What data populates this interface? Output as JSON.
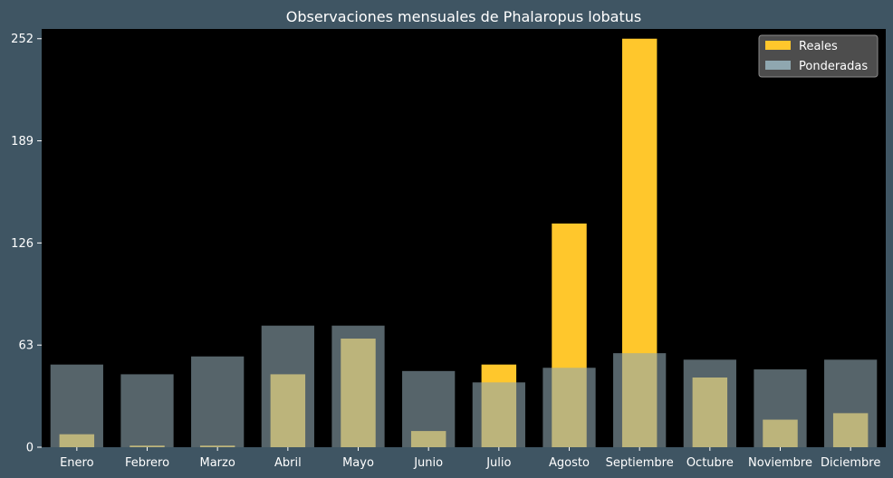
{
  "chart_data": {
    "type": "bar",
    "title": "Observaciones mensuales de Phalaropus lobatus",
    "xlabel": "",
    "ylabel": "",
    "categories": [
      "Enero",
      "Febrero",
      "Marzo",
      "Abril",
      "Mayo",
      "Junio",
      "Julio",
      "Agosto",
      "Septiembre",
      "Octubre",
      "Noviembre",
      "Diciembre"
    ],
    "series": [
      {
        "name": "Reales",
        "values": [
          8,
          1,
          1,
          45,
          67,
          10,
          51,
          138,
          252,
          43,
          17,
          21
        ],
        "color": "#ffc72c"
      },
      {
        "name": "Ponderadas",
        "values": [
          51,
          45,
          56,
          75,
          75,
          47,
          40,
          49,
          58,
          54,
          48,
          54
        ],
        "color": "#8fa7b0"
      }
    ],
    "ylim": [
      0,
      258
    ],
    "yticks": [
      0,
      63,
      126,
      189,
      252
    ],
    "legend": "top-right",
    "grid": false,
    "colors": {
      "background": "#3f5563",
      "plot_area": "#000000",
      "text": "#ffffff"
    }
  }
}
